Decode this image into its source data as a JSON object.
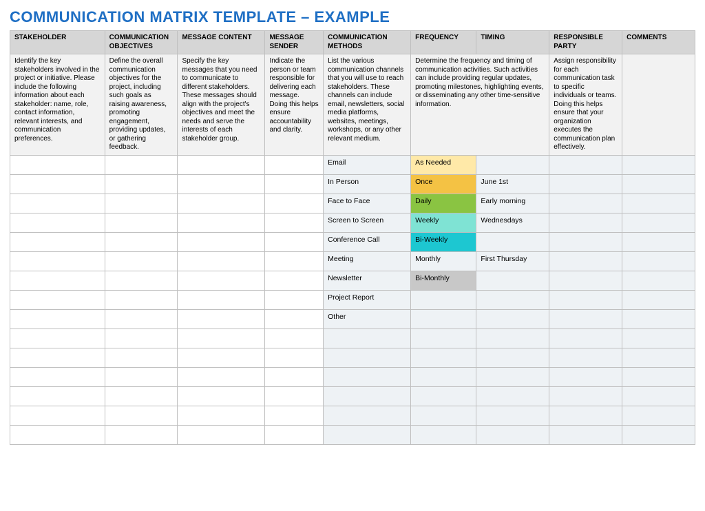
{
  "title": "COMMUNICATION MATRIX TEMPLATE  –  EXAMPLE",
  "title_color": "#1f6fc4",
  "title_fontsize": 22,
  "colors": {
    "header_bg": "#d6d6d6",
    "desc_bg": "#f2f2f2",
    "border": "#bfbfbf",
    "text": "#000000",
    "alt_col_bg": "#eef2f5",
    "freq_as_needed": "#ffe9a8",
    "freq_once": "#f4c244",
    "freq_daily": "#8ac442",
    "freq_weekly": "#7fe3d4",
    "freq_biweekly": "#1dc7d1",
    "freq_monthly": "#eef2f5",
    "freq_bimonthly": "#c8c8c8"
  },
  "columns": [
    {
      "key": "stakeholder",
      "label": "STAKEHOLDER",
      "width": 130,
      "shaded": false
    },
    {
      "key": "objectives",
      "label": "COMMUNICATION OBJECTIVES",
      "width": 100,
      "shaded": false
    },
    {
      "key": "content",
      "label": "MESSAGE CONTENT",
      "width": 120,
      "shaded": false
    },
    {
      "key": "sender",
      "label": "MESSAGE SENDER",
      "width": 80,
      "shaded": false
    },
    {
      "key": "methods",
      "label": "COMMUNICATION METHODS",
      "width": 120,
      "shaded": true
    },
    {
      "key": "frequency",
      "label": "FREQUENCY",
      "width": 90,
      "shaded": true
    },
    {
      "key": "timing",
      "label": "TIMING",
      "width": 100,
      "shaded": true
    },
    {
      "key": "party",
      "label": "RESPONSIBLE PARTY",
      "width": 100,
      "shaded": true
    },
    {
      "key": "comments",
      "label": "COMMENTS",
      "width": 100,
      "shaded": true
    }
  ],
  "descriptions": {
    "stakeholder": "Identify the key stakeholders involved in the project or initiative. Please include the following information about each stakeholder: name, role, contact information, relevant interests, and communication preferences.",
    "objectives": "Define the overall communication objectives for the project, including such goals as raising awareness, promoting engagement, providing updates, or gathering feedback.",
    "content": "Specify the key messages that you need to communicate to different stakeholders. These messages should align with the project's objectives and meet the needs and serve the interests of each stakeholder group.",
    "sender": "Indicate the person or team responsible for delivering each message. Doing this helps ensure accountability and clarity.",
    "methods": "List the various communication channels that you will use to reach stakeholders. These channels can include email, newsletters, social media platforms, websites, meetings, workshops, or any other relevant medium.",
    "freq_timing": "Determine the frequency and timing of communication activities. Such activities can include providing regular updates, promoting milestones, highlighting events, or disseminating any other time-sensitive information.",
    "party": "Assign responsibility for each communication task to specific individuals or teams. Doing this helps ensure that your organization executes the communication plan effectively.",
    "comments": ""
  },
  "rows": [
    {
      "methods": "Email",
      "frequency": "As Needed",
      "freq_color_key": "freq_as_needed",
      "timing": ""
    },
    {
      "methods": "In Person",
      "frequency": "Once",
      "freq_color_key": "freq_once",
      "timing": "June 1st"
    },
    {
      "methods": "Face to Face",
      "frequency": "Daily",
      "freq_color_key": "freq_daily",
      "timing": "Early morning"
    },
    {
      "methods": "Screen to Screen",
      "frequency": "Weekly",
      "freq_color_key": "freq_weekly",
      "timing": "Wednesdays"
    },
    {
      "methods": "Conference Call",
      "frequency": "Bi-Weekly",
      "freq_color_key": "freq_biweekly",
      "timing": ""
    },
    {
      "methods": "Meeting",
      "frequency": "Monthly",
      "freq_color_key": "freq_monthly",
      "timing": "First Thursday"
    },
    {
      "methods": "Newsletter",
      "frequency": "Bi-Monthly",
      "freq_color_key": "freq_bimonthly",
      "timing": ""
    },
    {
      "methods": "Project Report",
      "frequency": "",
      "freq_color_key": "",
      "timing": ""
    },
    {
      "methods": "Other",
      "frequency": "",
      "freq_color_key": "",
      "timing": ""
    }
  ],
  "extra_blank_rows": 6
}
